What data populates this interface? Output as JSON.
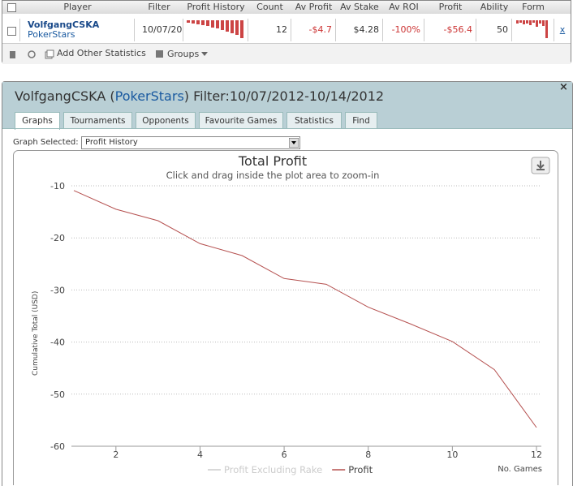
{
  "table": {
    "header": [
      "Player",
      "Filter",
      "Profit History",
      "Count",
      "Av Profit",
      "Av Stake",
      "Av ROI",
      "Profit",
      "Ability",
      "Form"
    ],
    "rows": [
      {
        "player": "VolfgangCSKA",
        "site": "PokerStars",
        "filter": "10/07/20",
        "count": 12,
        "av_profit": "-$4.7",
        "av_stake": "$4.28",
        "av_roi": "-100%",
        "profit": "-$56.4",
        "ability": 50,
        "remove": "x"
      }
    ]
  },
  "toolbar": {
    "add": "Add Other Statistics",
    "groups": "Groups"
  },
  "panel": {
    "title_prefix": "VolfgangCSKA (",
    "title_site": "PokerStars",
    "title_suffix": ") Filter:10/07/2012-10/14/2012",
    "close": "×",
    "tabs": [
      "Graphs",
      "Tournaments",
      "Opponents",
      "Favourite Games",
      "Statistics",
      "Find"
    ],
    "graph_selected_label": "Graph Selected:",
    "graph_selected": "Profit History"
  },
  "chart_data": {
    "type": "line",
    "title": "Total Profit",
    "subtitle": "Click and drag inside the plot area to zoom-in",
    "y_label": "Cumulative Total (USD)",
    "x_label": "No. Games",
    "x": [
      1,
      2,
      3,
      4,
      5,
      6,
      7,
      8,
      9,
      10,
      11,
      12
    ],
    "series": [
      {
        "name": "Profit Excluding Rake",
        "color": "#cccccc",
        "hidden": true,
        "values": [
          null,
          null,
          null,
          null,
          null,
          null,
          null,
          null,
          null,
          null,
          null,
          null
        ]
      },
      {
        "name": "Profit",
        "color": "#b5504f",
        "values": [
          -10.9,
          -14.5,
          -16.7,
          -21.1,
          -23.4,
          -27.8,
          -28.9,
          -33.3,
          -36.5,
          -39.9,
          -45.3,
          -56.4
        ]
      }
    ],
    "xlim": [
      1,
      12
    ],
    "ylim": [
      -60,
      -10
    ],
    "xticks": [
      2,
      4,
      6,
      8,
      10,
      12
    ],
    "yticks": [
      -10,
      -20,
      -30,
      -40,
      -50,
      -60
    ],
    "grid": true
  }
}
